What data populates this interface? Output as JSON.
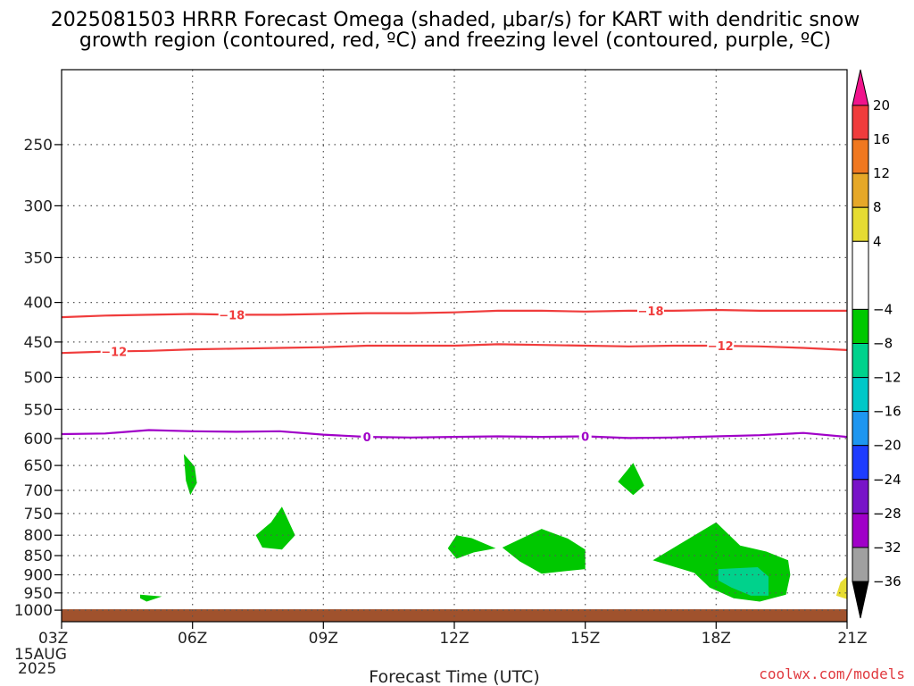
{
  "chart_data": {
    "type": "contour",
    "title_line1": "2025081503 HRRR Forecast Omega (shaded, μbar/s) for KART with dendritic snow",
    "title_line2": "growth region (contoured, red, ºC) and freezing level (contoured, purple, ºC)",
    "xlabel": "Forecast Time (UTC)",
    "x_ticks": [
      {
        "hour": 3,
        "label": "03Z"
      },
      {
        "hour": 6,
        "label": "06Z"
      },
      {
        "hour": 9,
        "label": "09Z"
      },
      {
        "hour": 12,
        "label": "12Z"
      },
      {
        "hour": 15,
        "label": "15Z"
      },
      {
        "hour": 18,
        "label": "18Z"
      },
      {
        "hour": 21,
        "label": "21Z"
      }
    ],
    "x_date_label": "15AUG",
    "x_year_label": "2025",
    "xlim": [
      3,
      21
    ],
    "ylim_hpa": [
      1035,
      200
    ],
    "y_scale": "log",
    "y_ticks": [
      250,
      300,
      350,
      400,
      450,
      500,
      550,
      600,
      650,
      700,
      750,
      800,
      850,
      900,
      950,
      1000
    ],
    "grid": "dotted",
    "colorbar": {
      "labels": [
        "20",
        "16",
        "12",
        "8",
        "4",
        "−4",
        "−8",
        "−12",
        "−16",
        "−20",
        "−24",
        "−28",
        "−32",
        "−36"
      ],
      "bins": [
        {
          "lo": 16,
          "hi": 20,
          "color": "#f03c3c"
        },
        {
          "lo": 12,
          "hi": 16,
          "color": "#f07820"
        },
        {
          "lo": 8,
          "hi": 12,
          "color": "#e6a828"
        },
        {
          "lo": 4,
          "hi": 8,
          "color": "#e6dc32"
        },
        {
          "lo": -4,
          "hi": 4,
          "color": "#ffffff"
        },
        {
          "lo": -8,
          "hi": -4,
          "color": "#00c800"
        },
        {
          "lo": -12,
          "hi": -8,
          "color": "#00d28c"
        },
        {
          "lo": -16,
          "hi": -12,
          "color": "#00c8c8"
        },
        {
          "lo": -20,
          "hi": -16,
          "color": "#1e96f0"
        },
        {
          "lo": -24,
          "hi": -20,
          "color": "#1e3cff"
        },
        {
          "lo": -28,
          "hi": -24,
          "color": "#7814c8"
        },
        {
          "lo": -32,
          "hi": -28,
          "color": "#a000c8"
        },
        {
          "lo": -36,
          "hi": -32,
          "color": "#a0a0a0"
        }
      ],
      "top_arrow_color": "#f0148c",
      "bottom_arrow_color": "#000000"
    },
    "contours": [
      {
        "value": -18,
        "label": "−18",
        "color": "#f03c3c",
        "points": [
          [
            3,
            418
          ],
          [
            4,
            416
          ],
          [
            5,
            415
          ],
          [
            6,
            414
          ],
          [
            7,
            415
          ],
          [
            8,
            415
          ],
          [
            9,
            414
          ],
          [
            10,
            413
          ],
          [
            11,
            413
          ],
          [
            12,
            412
          ],
          [
            13,
            410
          ],
          [
            14,
            410
          ],
          [
            15,
            411
          ],
          [
            16,
            410
          ],
          [
            17,
            410
          ],
          [
            18,
            409
          ],
          [
            19,
            410
          ],
          [
            20,
            410
          ],
          [
            21,
            410
          ]
        ],
        "label_hours": [
          6.9,
          16.5
        ]
      },
      {
        "value": -12,
        "label": "−12",
        "color": "#f03c3c",
        "points": [
          [
            3,
            465
          ],
          [
            4,
            463
          ],
          [
            5,
            462
          ],
          [
            6,
            460
          ],
          [
            7,
            459
          ],
          [
            8,
            458
          ],
          [
            9,
            457
          ],
          [
            10,
            455
          ],
          [
            11,
            455
          ],
          [
            12,
            455
          ],
          [
            13,
            453
          ],
          [
            14,
            454
          ],
          [
            15,
            455
          ],
          [
            16,
            456
          ],
          [
            17,
            455
          ],
          [
            18,
            455
          ],
          [
            19,
            456
          ],
          [
            20,
            458
          ],
          [
            21,
            461
          ]
        ],
        "label_hours": [
          4.2,
          18.1
        ]
      },
      {
        "value": 0,
        "label": "0",
        "color": "#a000c8",
        "points": [
          [
            3,
            592
          ],
          [
            4,
            591
          ],
          [
            5,
            585
          ],
          [
            6,
            587
          ],
          [
            7,
            588
          ],
          [
            8,
            587
          ],
          [
            9,
            593
          ],
          [
            10,
            597
          ],
          [
            11,
            598
          ],
          [
            12,
            597
          ],
          [
            13,
            596
          ],
          [
            14,
            597
          ],
          [
            15,
            596
          ],
          [
            16,
            599
          ],
          [
            17,
            598
          ],
          [
            18,
            596
          ],
          [
            19,
            594
          ],
          [
            20,
            590
          ],
          [
            21,
            597
          ]
        ],
        "label_hours": [
          10.0,
          15.0
        ]
      }
    ],
    "shaded_regions": [
      {
        "bin": "-4 to -8",
        "color": "#00c800",
        "points": [
          [
            5.8,
            628
          ],
          [
            6.05,
            652
          ],
          [
            6.1,
            685
          ],
          [
            5.95,
            710
          ],
          [
            5.85,
            680
          ]
        ]
      },
      {
        "bin": "-4 to -8",
        "color": "#00c800",
        "points": [
          [
            8.05,
            735
          ],
          [
            8.35,
            800
          ],
          [
            8.05,
            835
          ],
          [
            7.6,
            830
          ],
          [
            7.45,
            800
          ],
          [
            7.8,
            770
          ]
        ]
      },
      {
        "bin": "-4 to -8",
        "color": "#00c800",
        "points": [
          [
            4.8,
            955
          ],
          [
            5.3,
            960
          ],
          [
            4.95,
            975
          ],
          [
            4.8,
            965
          ]
        ]
      },
      {
        "bin": "-4 to -8",
        "color": "#00c800",
        "points": [
          [
            12.05,
            800
          ],
          [
            12.4,
            807
          ],
          [
            12.95,
            832
          ],
          [
            12.45,
            842
          ],
          [
            12.05,
            858
          ],
          [
            11.85,
            832
          ]
        ]
      },
      {
        "bin": "-4 to -8",
        "color": "#00c800",
        "points": [
          [
            13.1,
            830
          ],
          [
            14.0,
            785
          ],
          [
            14.6,
            808
          ],
          [
            15.0,
            835
          ],
          [
            15.0,
            885
          ],
          [
            14.0,
            897
          ],
          [
            13.5,
            865
          ]
        ]
      },
      {
        "bin": "-4 to -8",
        "color": "#00c800",
        "points": [
          [
            16.1,
            645
          ],
          [
            16.35,
            690
          ],
          [
            16.1,
            710
          ],
          [
            15.75,
            682
          ]
        ]
      },
      {
        "bin": "-4 to -8",
        "color": "#00c800",
        "points": [
          [
            18.0,
            770
          ],
          [
            18.55,
            825
          ],
          [
            19.15,
            840
          ],
          [
            19.65,
            862
          ],
          [
            19.7,
            900
          ],
          [
            19.6,
            955
          ],
          [
            19.0,
            975
          ],
          [
            18.4,
            965
          ],
          [
            17.85,
            935
          ],
          [
            17.5,
            895
          ],
          [
            16.55,
            862
          ]
        ]
      },
      {
        "bin": "-8 to -12",
        "color": "#00d28c",
        "points": [
          [
            18.05,
            885
          ],
          [
            18.95,
            880
          ],
          [
            19.2,
            905
          ],
          [
            19.2,
            958
          ],
          [
            18.8,
            958
          ],
          [
            18.35,
            935
          ],
          [
            18.05,
            915
          ]
        ]
      },
      {
        "bin": "4 to 8",
        "color": "#e6dc32",
        "points": [
          [
            20.85,
            920
          ],
          [
            21.0,
            905
          ],
          [
            21.0,
            968
          ],
          [
            20.75,
            958
          ]
        ]
      }
    ],
    "terrain": {
      "color": "#a0522d",
      "surface_hpa": 1000
    }
  },
  "credit": "coolwx.com/models"
}
